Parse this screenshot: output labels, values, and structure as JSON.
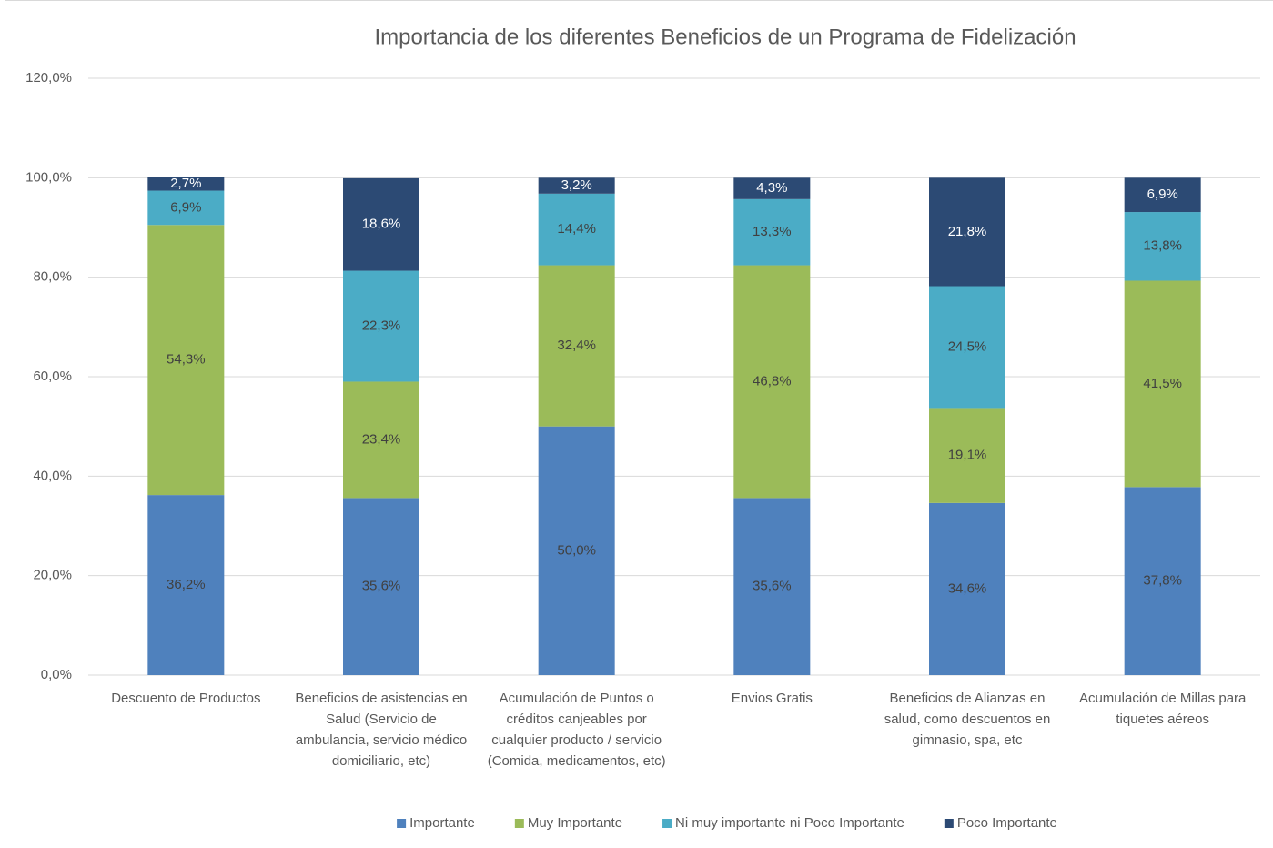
{
  "chart_data": {
    "type": "stacked_bar",
    "title": "Importancia de los diferentes Beneficios de un Programa de Fidelización",
    "categories": [
      "Descuento de Productos",
      "Beneficios de asistencias en Salud (Servicio de ambulancia, servicio médico domiciliario, etc)",
      "Acumulación de Puntos o créditos canjeables por cualquier producto / servicio (Comida, medicamentos, etc)",
      "Envios Gratis",
      "Beneficios de Alianzas en salud, como descuentos en gimnasio, spa, etc",
      "Acumulación de Millas para tiquetes aéreos"
    ],
    "series": [
      {
        "name": "Importante",
        "color": "#4f81bd",
        "values": [
          36.2,
          35.6,
          50.0,
          35.6,
          34.6,
          37.8
        ],
        "value_labels": [
          "36,2%",
          "35,6%",
          "50,0%",
          "35,6%",
          "34,6%",
          "37,8%"
        ]
      },
      {
        "name": "Muy Importante",
        "color": "#9bbb59",
        "values": [
          54.3,
          23.4,
          32.4,
          46.8,
          19.1,
          41.5
        ],
        "value_labels": [
          "54,3%",
          "23,4%",
          "32,4%",
          "46,8%",
          "19,1%",
          "41,5%"
        ]
      },
      {
        "name": "Ni muy importante ni Poco Importante",
        "color": "#4bacc6",
        "values": [
          6.9,
          22.3,
          14.4,
          13.3,
          24.5,
          13.8
        ],
        "value_labels": [
          "6,9%",
          "22,3%",
          "14,4%",
          "13,3%",
          "24,5%",
          "13,8%"
        ]
      },
      {
        "name": "Poco Importante",
        "color": "#2c4a74",
        "values": [
          2.7,
          18.6,
          3.2,
          4.3,
          21.8,
          6.9
        ],
        "value_labels": [
          "2,7%",
          "18,6%",
          "3,2%",
          "4,3%",
          "21,8%",
          "6,9%"
        ]
      }
    ],
    "ylim": [
      0,
      120
    ],
    "yticks": [
      {
        "value": 0,
        "label": "0,0%"
      },
      {
        "value": 20,
        "label": "20,0%"
      },
      {
        "value": 40,
        "label": "40,0%"
      },
      {
        "value": 60,
        "label": "60,0%"
      },
      {
        "value": 80,
        "label": "80,0%"
      },
      {
        "value": 100,
        "label": "100,0%"
      },
      {
        "value": 120,
        "label": "120,0%"
      }
    ],
    "grid": true,
    "legend": "bottom"
  }
}
